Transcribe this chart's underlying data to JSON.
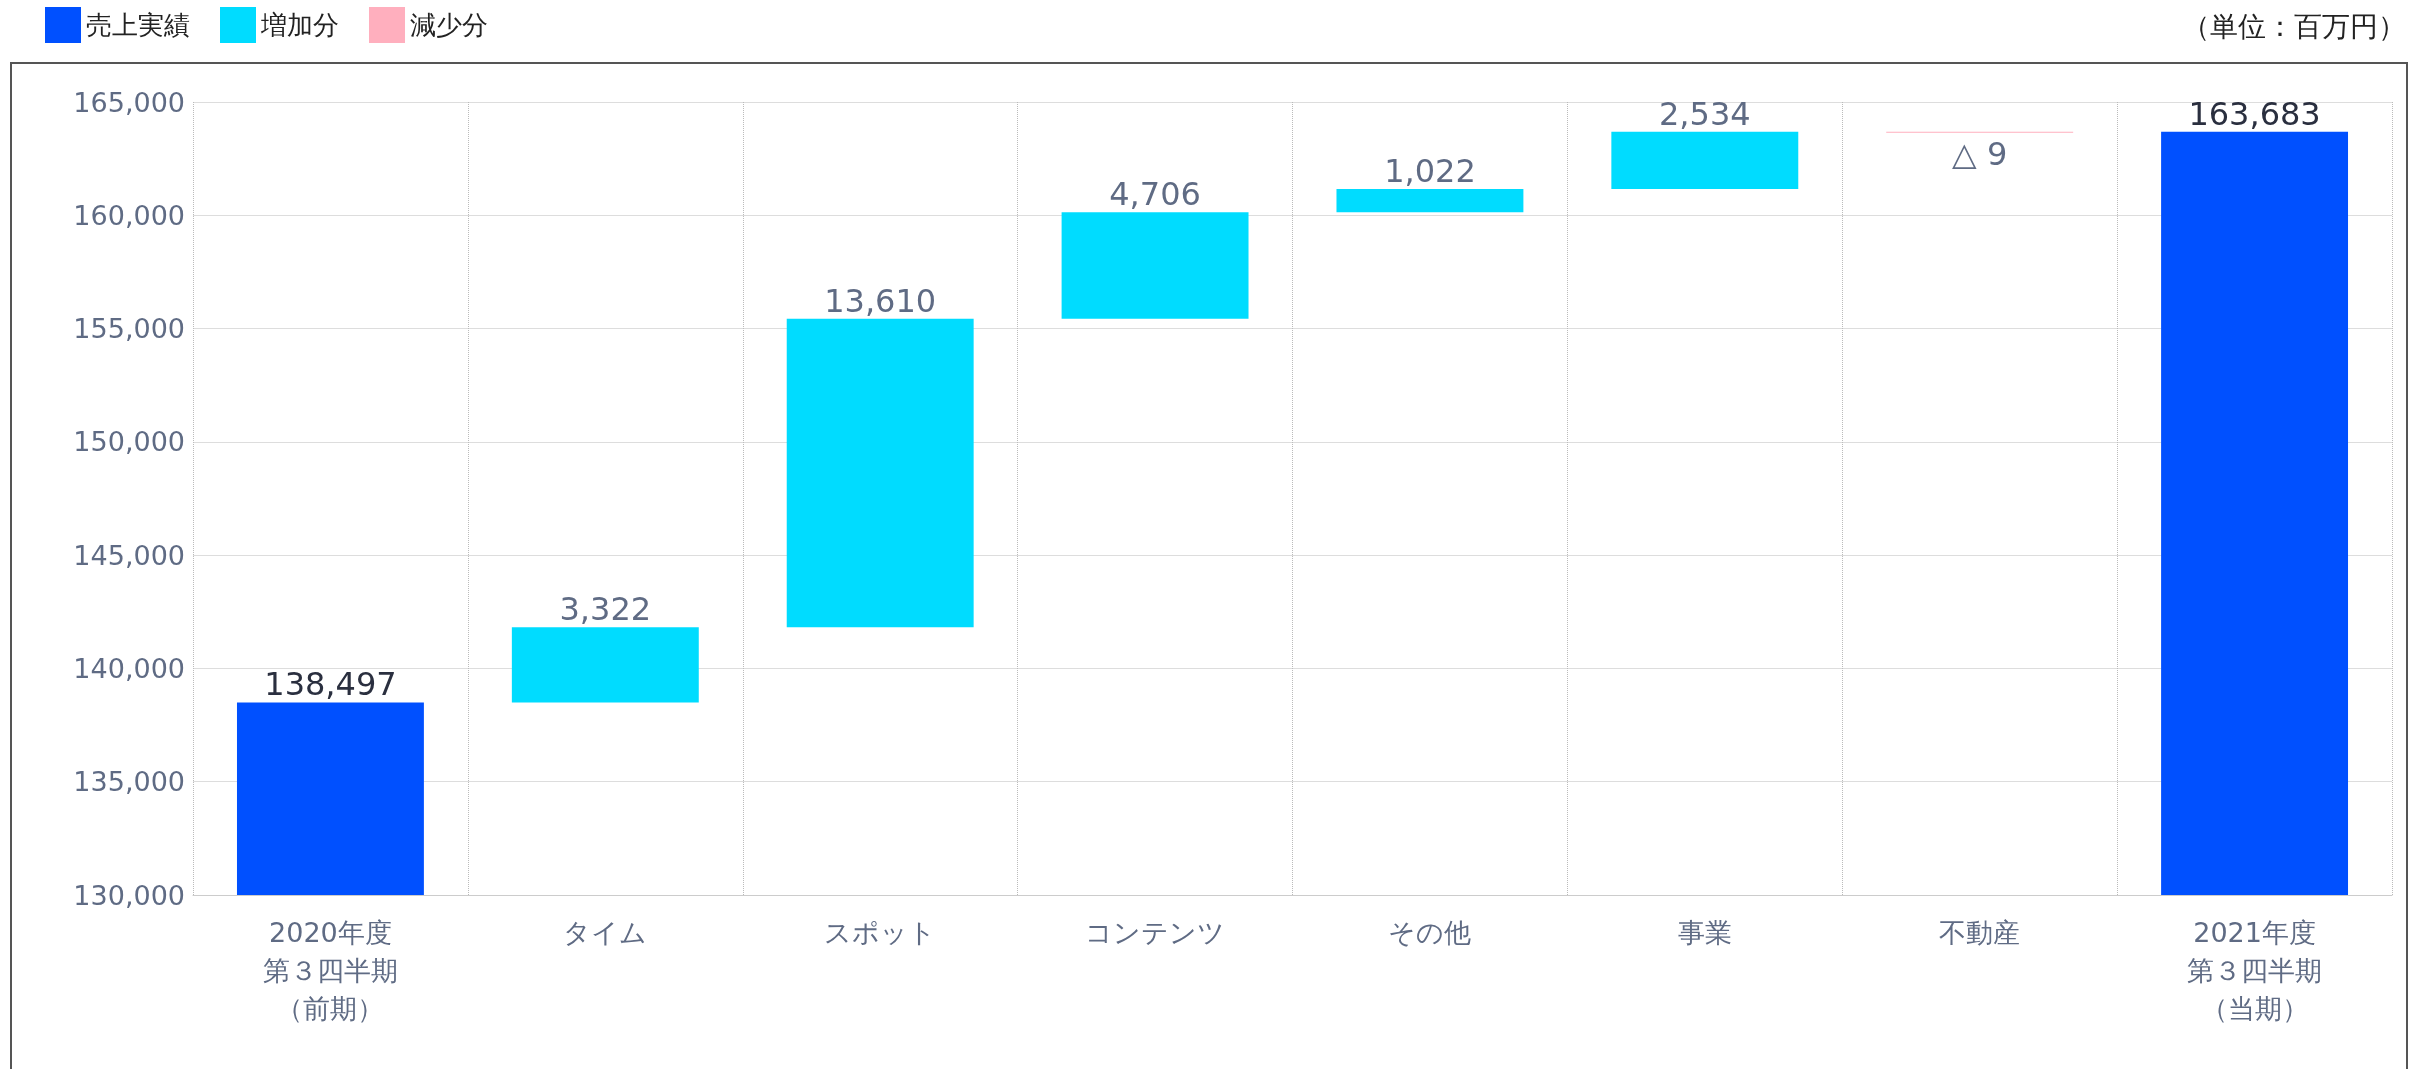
{
  "chart_data": {
    "type": "bar",
    "categories": [
      "2020年度第３四半期（前期）",
      "タイム",
      "スポット",
      "コンテンツ",
      "その他",
      "事業",
      "不動産",
      "2021年度第３四半期（当期）"
    ],
    "series": [
      {
        "name": "売上実績",
        "color": "#0050ff",
        "values": [
          138497,
          null,
          null,
          null,
          null,
          null,
          null,
          163683
        ],
        "value_labels": [
          "138,497",
          null,
          null,
          null,
          null,
          null,
          null,
          "163,683"
        ]
      },
      {
        "name": "増加分",
        "color": "#00dcff",
        "values": [
          null,
          3322,
          13610,
          4706,
          1022,
          2534,
          null,
          null
        ],
        "base": [
          null,
          138497,
          141819,
          155429,
          160135,
          161157,
          null,
          null
        ],
        "value_labels": [
          null,
          "3,322",
          "13,610",
          "4,706",
          "1,022",
          "2,534",
          null,
          null
        ]
      },
      {
        "name": "減少分",
        "color": "#ffafbe",
        "values": [
          null,
          null,
          null,
          null,
          null,
          null,
          -9,
          null
        ],
        "base": [
          null,
          null,
          null,
          null,
          null,
          null,
          163691,
          null
        ],
        "value_labels": [
          null,
          null,
          null,
          null,
          null,
          null,
          "△ 9",
          null
        ]
      }
    ],
    "ylim": [
      130000,
      165000
    ],
    "yticks": [
      {
        "value": 130000,
        "label": "130,000"
      },
      {
        "value": 135000,
        "label": "135,000"
      },
      {
        "value": 140000,
        "label": "140,000"
      },
      {
        "value": 145000,
        "label": "145,000"
      },
      {
        "value": 150000,
        "label": "150,000"
      },
      {
        "value": 155000,
        "label": "155,000"
      },
      {
        "value": 160000,
        "label": "160,000"
      },
      {
        "value": 165000,
        "label": "165,000"
      }
    ],
    "grid": true,
    "legend": "top left",
    "annotations": [
      "（単位：百万円）"
    ]
  }
}
